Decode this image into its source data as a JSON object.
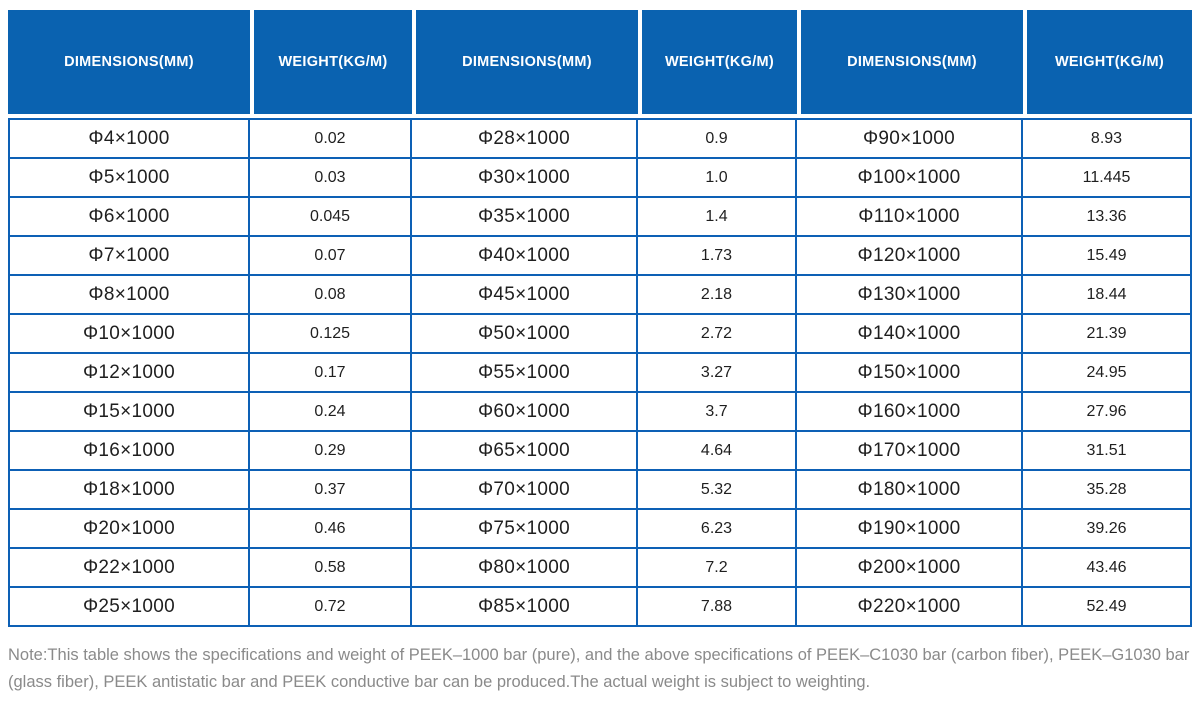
{
  "colors": {
    "header_bg": "#0a62b0",
    "grid_border": "#0d60b5",
    "header_text": "#ffffff",
    "cell_text": "#1f1f1f",
    "note_text": "#8a8a8a"
  },
  "table": {
    "headers": [
      "DIMENSIONS(MM)",
      "WEIGHT(KG/M)",
      "DIMENSIONS(MM)",
      "WEIGHT(KG/M)",
      "DIMENSIONS(MM)",
      "WEIGHT(KG/M)"
    ],
    "rows": [
      [
        "Φ4×1000",
        "0.02",
        "Φ28×1000",
        "0.9",
        "Φ90×1000",
        "8.93"
      ],
      [
        "Φ5×1000",
        "0.03",
        "Φ30×1000",
        "1.0",
        "Φ100×1000",
        "11.445"
      ],
      [
        "Φ6×1000",
        "0.045",
        "Φ35×1000",
        "1.4",
        "Φ110×1000",
        "13.36"
      ],
      [
        "Φ7×1000",
        "0.07",
        "Φ40×1000",
        "1.73",
        "Φ120×1000",
        "15.49"
      ],
      [
        "Φ8×1000",
        "0.08",
        "Φ45×1000",
        "2.18",
        "Φ130×1000",
        "18.44"
      ],
      [
        "Φ10×1000",
        "0.125",
        "Φ50×1000",
        "2.72",
        "Φ140×1000",
        "21.39"
      ],
      [
        "Φ12×1000",
        "0.17",
        "Φ55×1000",
        "3.27",
        "Φ150×1000",
        "24.95"
      ],
      [
        "Φ15×1000",
        "0.24",
        "Φ60×1000",
        "3.7",
        "Φ160×1000",
        "27.96"
      ],
      [
        "Φ16×1000",
        "0.29",
        "Φ65×1000",
        "4.64",
        "Φ170×1000",
        "31.51"
      ],
      [
        "Φ18×1000",
        "0.37",
        "Φ70×1000",
        "5.32",
        "Φ180×1000",
        "35.28"
      ],
      [
        "Φ20×1000",
        "0.46",
        "Φ75×1000",
        "6.23",
        "Φ190×1000",
        "39.26"
      ],
      [
        "Φ22×1000",
        "0.58",
        "Φ80×1000",
        "7.2",
        "Φ200×1000",
        "43.46"
      ],
      [
        "Φ25×1000",
        "0.72",
        "Φ85×1000",
        "7.88",
        "Φ220×1000",
        "52.49"
      ]
    ]
  },
  "note": {
    "text": "Note:This table shows the specifications and weight of PEEK–1000 bar (pure), and the above specifications of PEEK–C1030 bar (carbon fiber), PEEK–G1030 bar (glass fiber), PEEK antistatic bar and PEEK conductive bar can be produced.The actual weight is subject to weighting."
  }
}
